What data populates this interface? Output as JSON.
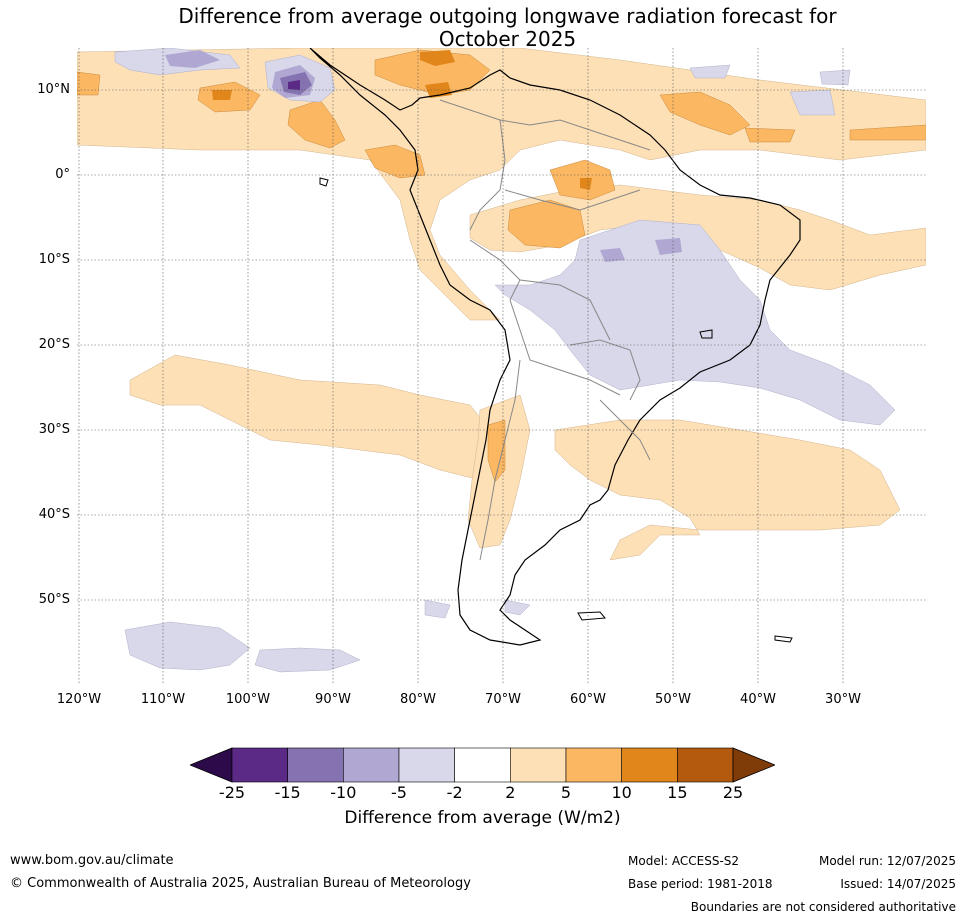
{
  "title": {
    "line1": "Difference from average outgoing longwave radiation forecast for",
    "line2": "October 2025"
  },
  "axes": {
    "lat_labels": [
      "10°N",
      "0°",
      "10°S",
      "20°S",
      "30°S",
      "40°S",
      "50°S"
    ],
    "lon_labels": [
      "120°W",
      "110°W",
      "100°W",
      "90°W",
      "80°W",
      "70°W",
      "60°W",
      "50°W",
      "40°W",
      "30°W"
    ]
  },
  "colorbar": {
    "ticks": [
      "-25",
      "-15",
      "-10",
      "-5",
      "-2",
      "2",
      "5",
      "10",
      "15",
      "25"
    ],
    "colors": [
      "#2d0a4a",
      "#5a2a86",
      "#8473b0",
      "#b0a8d2",
      "#d8d8ea",
      "#ffffff",
      "#fde0b6",
      "#fbb762",
      "#e1861a",
      "#b35a0e",
      "#7f3b08"
    ],
    "label": "Difference from average (W/m2)"
  },
  "footer": {
    "url": "www.bom.gov.au/climate",
    "copyright": "© Commonwealth of Australia 2025, Australian Bureau of Meteorology",
    "model": "Model: ACCESS-S2",
    "base_period": "Base period: 1981-2018",
    "model_run": "Model run: 12/07/2025",
    "issued": "Issued: 14/07/2025",
    "disclaimer": "Boundaries are not considered authoritative"
  }
}
